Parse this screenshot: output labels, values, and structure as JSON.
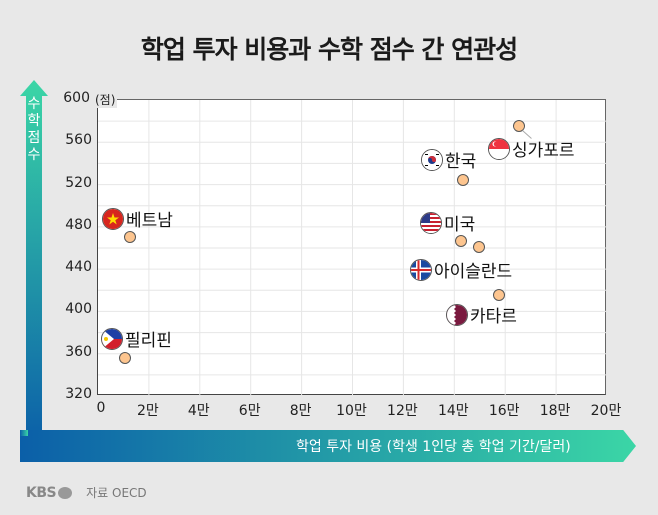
{
  "title": "학업 투자 비용과 수학 점수 간 연관성",
  "footer": {
    "brand": "KBS",
    "source": "자료 OECD"
  },
  "colors": {
    "background": "#e8e8e8",
    "point_fill": "#fdc58f",
    "arrow_start": "#0b5fa8",
    "arrow_end": "#3bd6a6"
  },
  "chart_data": {
    "type": "scatter",
    "title": "학업 투자 비용과 수학 점수 간 연관성",
    "xlabel": "학업 투자 비용 (학생 1인당 총 학업 기간/달러)",
    "ylabel": "수학 점수",
    "y_unit": "(점)",
    "xlim": [
      0,
      210000
    ],
    "ylim": [
      320,
      600
    ],
    "x_ticks": [
      "0",
      "2만",
      "4만",
      "6만",
      "8만",
      "10만",
      "12만",
      "14만",
      "16만",
      "18만",
      "20만"
    ],
    "y_ticks": [
      "600",
      "560",
      "520",
      "480",
      "440",
      "400",
      "360",
      "320"
    ],
    "grid": true,
    "legend": "none",
    "points": [
      {
        "label": "베트남",
        "x": 13000,
        "y": 469,
        "flag": "vietnam"
      },
      {
        "label": "필리핀",
        "x": 11000,
        "y": 355,
        "flag": "philippines"
      },
      {
        "label": "한국",
        "x": 144000,
        "y": 523,
        "flag": "korea"
      },
      {
        "label": "싱가포르",
        "x": 166000,
        "y": 574,
        "flag": "singapore"
      },
      {
        "label": "미국",
        "x": 143000,
        "y": 466,
        "flag": "usa"
      },
      {
        "label": "아이슬란드",
        "x": 150000,
        "y": 460,
        "flag": "iceland"
      },
      {
        "label": "카타르",
        "x": 158000,
        "y": 415,
        "flag": "qatar"
      }
    ]
  }
}
